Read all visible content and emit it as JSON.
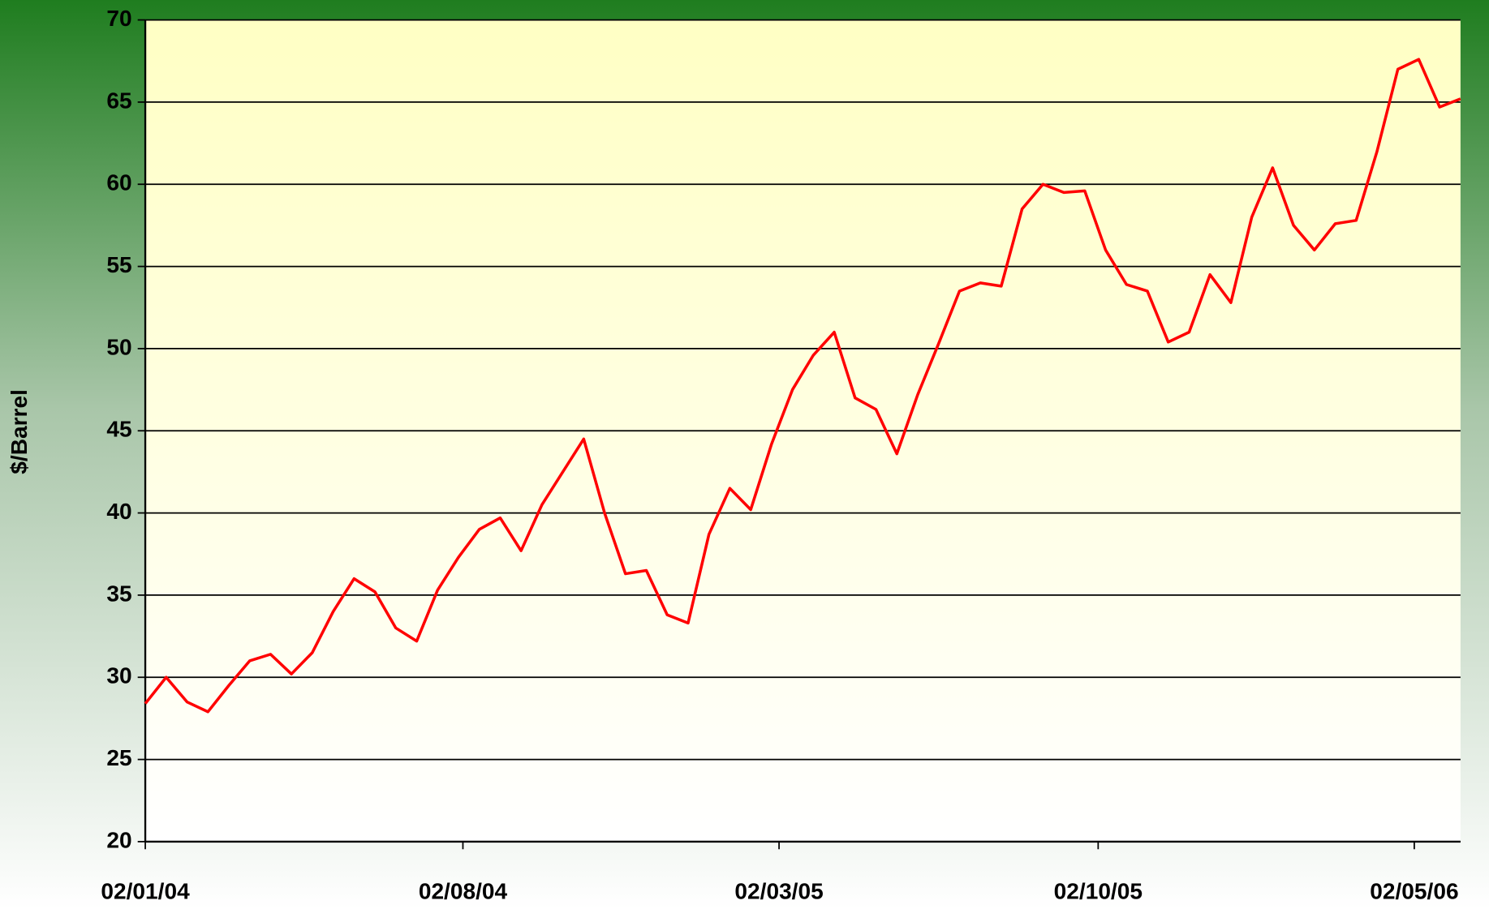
{
  "chart_data": {
    "type": "line",
    "y_label": "$/Barrel",
    "x": [
      "2004-01-02",
      "2004-01-16",
      "2004-01-30",
      "2004-02-13",
      "2004-02-27",
      "2004-03-12",
      "2004-03-26",
      "2004-04-09",
      "2004-04-23",
      "2004-05-07",
      "2004-05-21",
      "2004-06-04",
      "2004-06-18",
      "2004-07-02",
      "2004-07-16",
      "2004-07-30",
      "2004-08-13",
      "2004-08-27",
      "2004-09-10",
      "2004-09-24",
      "2004-10-08",
      "2004-10-22",
      "2004-11-05",
      "2004-11-19",
      "2004-12-03",
      "2004-12-17",
      "2004-12-31",
      "2005-01-14",
      "2005-01-28",
      "2005-02-11",
      "2005-02-25",
      "2005-03-11",
      "2005-03-25",
      "2005-04-08",
      "2005-04-22",
      "2005-05-06",
      "2005-05-20",
      "2005-06-03",
      "2005-06-17",
      "2005-07-01",
      "2005-07-15",
      "2005-07-29",
      "2005-08-12",
      "2005-08-26",
      "2005-09-09",
      "2005-09-23",
      "2005-10-07",
      "2005-10-21",
      "2005-11-04",
      "2005-11-18",
      "2005-12-02",
      "2005-12-16",
      "2005-12-30",
      "2006-01-13",
      "2006-01-27",
      "2006-02-10",
      "2006-02-24",
      "2006-03-10",
      "2006-03-24",
      "2006-04-07",
      "2006-04-21",
      "2006-05-05",
      "2006-05-19",
      "2006-06-02"
    ],
    "values": [
      28.4,
      30.0,
      28.5,
      27.9,
      29.5,
      31.0,
      31.4,
      30.2,
      31.5,
      34.0,
      36.0,
      35.2,
      33.0,
      32.2,
      35.3,
      37.3,
      39.0,
      39.7,
      37.7,
      40.5,
      42.5,
      44.5,
      40.0,
      36.3,
      36.5,
      33.8,
      33.3,
      38.7,
      41.5,
      40.2,
      44.2,
      47.5,
      49.6,
      51.0,
      47.0,
      46.3,
      43.6,
      47.2,
      50.3,
      53.5,
      54.0,
      53.8,
      58.5,
      60.0,
      59.5,
      59.6,
      56.0,
      53.9,
      53.5,
      50.4,
      51.0,
      54.5,
      52.8,
      58.0,
      61.0,
      57.5,
      56.0,
      57.6,
      57.8,
      62.0,
      67.0,
      67.6,
      64.7,
      65.2
    ],
    "color": "#ff0000",
    "xlim": [
      "2004-01-02",
      "2006-06-02"
    ],
    "xticks": [
      {
        "value": "2004-01-02",
        "label": "02/01/04"
      },
      {
        "value": "2004-08-02",
        "label": "02/08/04"
      },
      {
        "value": "2005-03-02",
        "label": "02/03/05"
      },
      {
        "value": "2005-10-02",
        "label": "02/10/05"
      },
      {
        "value": "2006-05-02",
        "label": "02/05/06"
      }
    ],
    "ylim": [
      20,
      70
    ],
    "yticks": [
      20,
      25,
      30,
      35,
      40,
      45,
      50,
      55,
      60,
      65,
      70
    ],
    "grid": true
  }
}
